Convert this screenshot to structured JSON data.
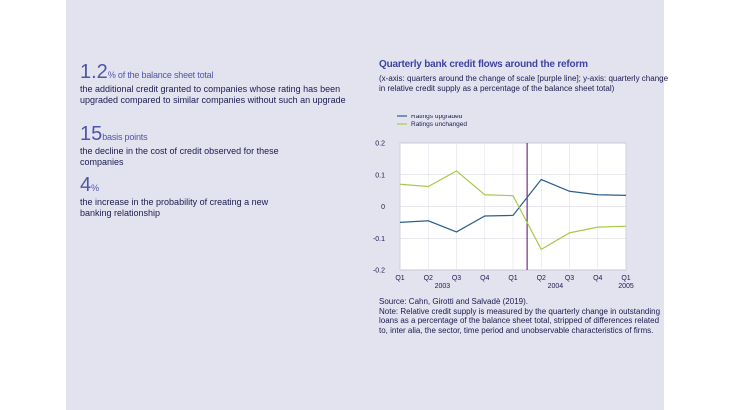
{
  "stats": [
    {
      "value": "1.2",
      "unit": "% of the balance sheet total",
      "desc": "the additional credit granted to companies whose rating has been upgraded compared to similar companies without such an upgrade"
    },
    {
      "value": "15",
      "unit": "basis points",
      "desc": "the decline in the cost of credit observed for these companies"
    },
    {
      "value": "4",
      "unit": "%",
      "desc": "the increase in the probability of creating a new banking relationship"
    }
  ],
  "chart": {
    "title": "Quarterly bank credit flows around the reform",
    "subtitle": "(x-axis: quarters around the change of scale [purple line]; y-axis: quarterly change in relative credit supply as a percentage of the balance sheet total)",
    "source": "Source: Cahn, Girotti and Salvadè (2019).",
    "note": "Note: Relative credit supply is measured by the quarterly change in outstanding loans as a percentage of the balance sheet total, stripped of differences related to, inter alia, the sector, time period and unobservable characteristics of firms."
  },
  "chart_data": {
    "type": "line",
    "categories": [
      "Q1",
      "Q2",
      "Q3",
      "Q4",
      "Q1",
      "Q2",
      "Q3",
      "Q4",
      "Q1"
    ],
    "year_labels": [
      "2003",
      "2004",
      "2005"
    ],
    "series": [
      {
        "name": "Ratings upgraded",
        "color": "#2a5f8f",
        "values": [
          -0.05,
          -0.045,
          -0.08,
          -0.03,
          -0.028,
          0.085,
          0.048,
          0.037,
          0.035
        ]
      },
      {
        "name": "Ratings unchanged",
        "color": "#a8c94a",
        "values": [
          0.07,
          0.063,
          0.112,
          0.037,
          0.034,
          -0.135,
          -0.083,
          -0.065,
          -0.062
        ]
      }
    ],
    "y_ticks": [
      "0.2",
      "0.1",
      "0",
      "-0.1",
      "-0.2"
    ],
    "ylim": [
      -0.2,
      0.2
    ],
    "reform_line": 4.5,
    "reform_color": "#7a2a8a",
    "grid": true
  }
}
